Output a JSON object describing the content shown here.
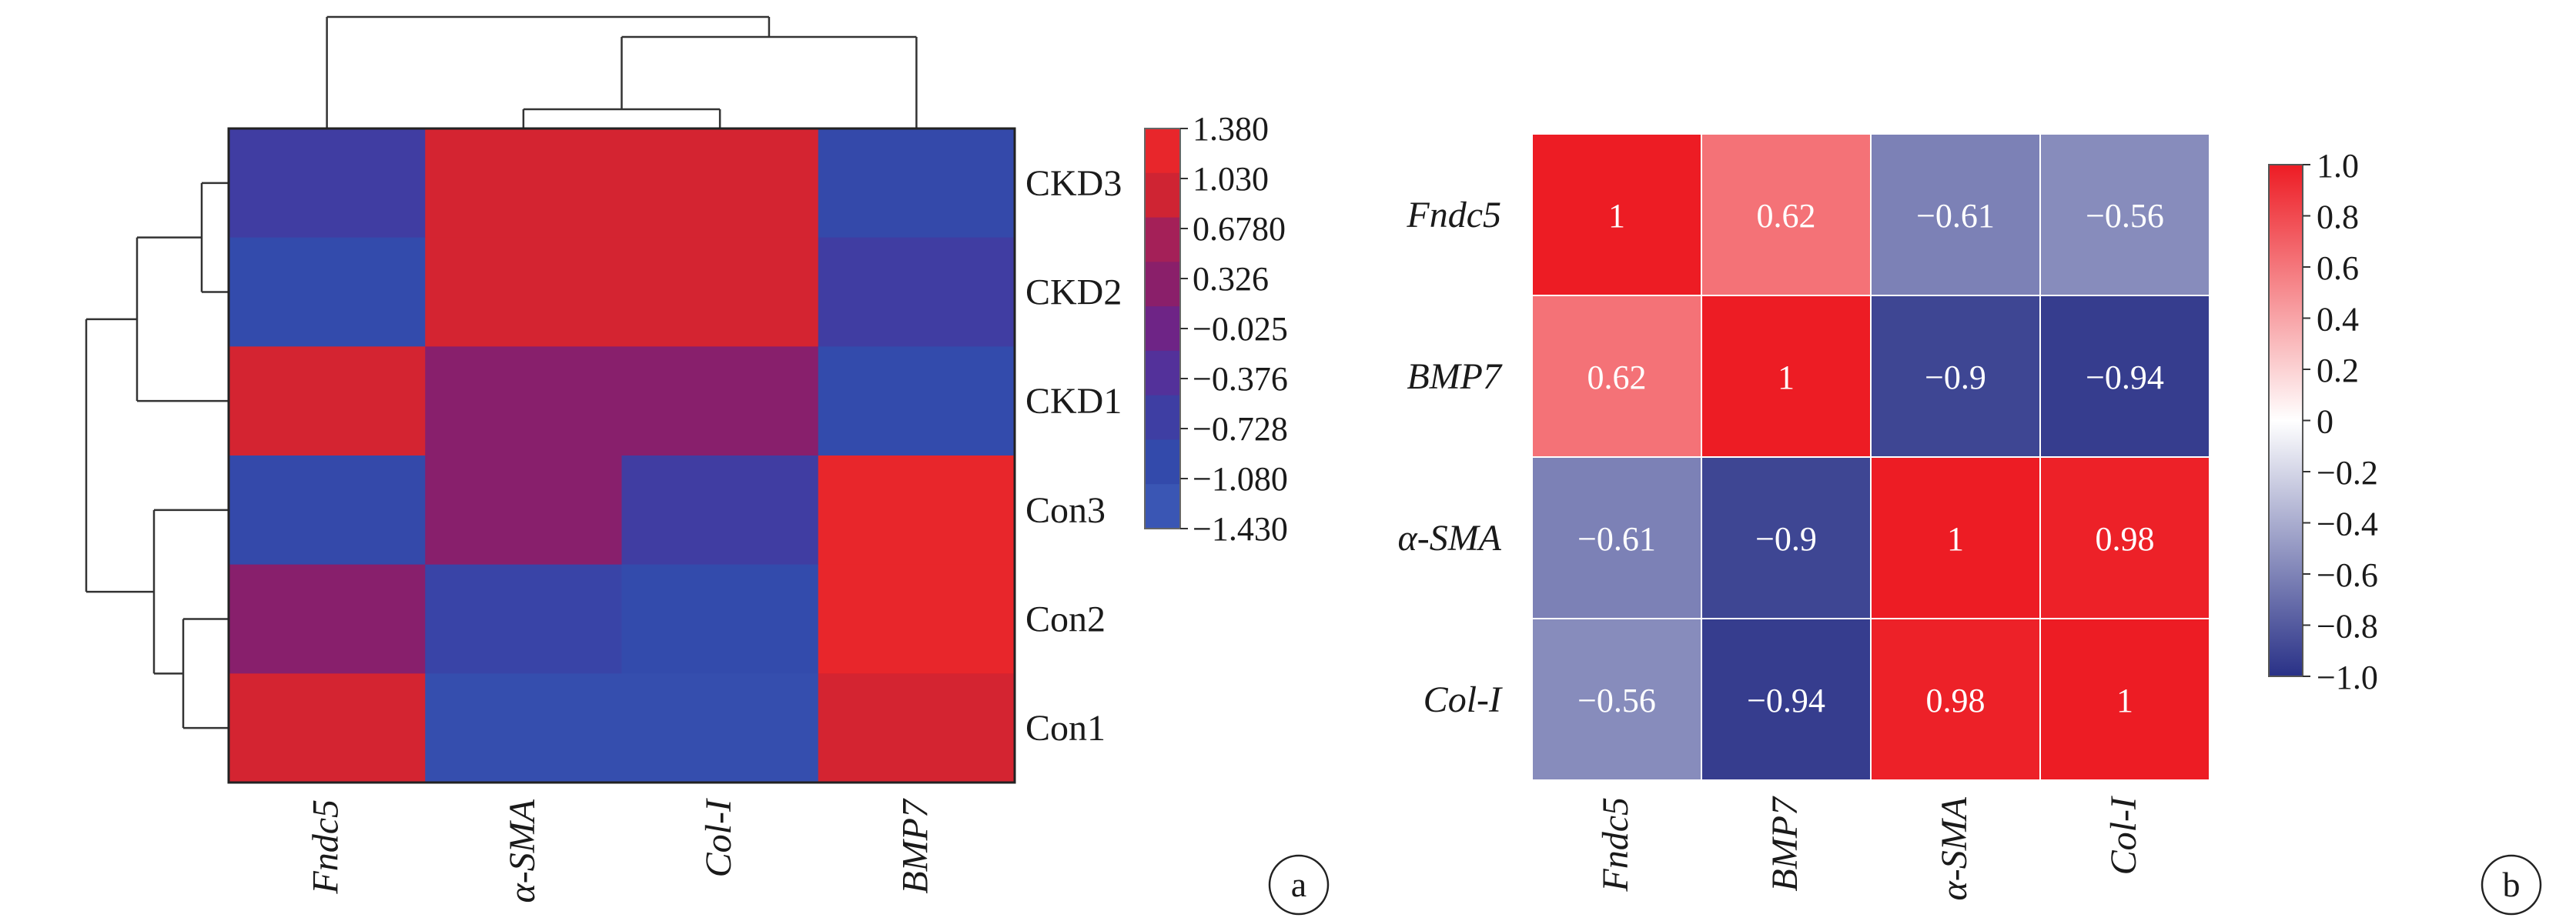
{
  "panels": [
    {
      "id": "a",
      "label": "a"
    },
    {
      "id": "b",
      "label": "b"
    }
  ],
  "chart_data": [
    {
      "type": "heatmap",
      "panel": "a",
      "rows": [
        "CKD3",
        "CKD2",
        "CKD1",
        "Con3",
        "Con2",
        "Con1"
      ],
      "columns": [
        "Fndc5",
        "α-SMA",
        "Col-I",
        "BMP7"
      ],
      "values": [
        [
          -0.7,
          1.1,
          1.1,
          -1.05
        ],
        [
          -1.1,
          1.1,
          1.1,
          -0.7
        ],
        [
          1.1,
          0.3,
          0.3,
          -1.1
        ],
        [
          -1.05,
          0.3,
          -0.7,
          1.38
        ],
        [
          0.3,
          -0.9,
          -1.1,
          1.38
        ],
        [
          1.1,
          -1.2,
          -1.2,
          1.1
        ]
      ],
      "colorbar": {
        "ticks": [
          "1.380",
          "1.030",
          "0.6780",
          "0.326",
          "−0.025",
          "−0.376",
          "−0.728",
          "−1.080",
          "−1.430"
        ],
        "range": [
          -1.43,
          1.38
        ],
        "colors": [
          "#e8262b",
          "#cf2433",
          "#a42058",
          "#8a1f6a",
          "#6e2486",
          "#53319a",
          "#3e3ea3",
          "#334aab",
          "#3a56b4"
        ]
      },
      "dendrogram": {
        "rows": true,
        "columns": true
      }
    },
    {
      "type": "heatmap",
      "panel": "b",
      "rows": [
        "Fndc5",
        "BMP7",
        "α-SMA",
        "Col-I"
      ],
      "columns": [
        "Fndc5",
        "BMP7",
        "α-SMA",
        "Col-I"
      ],
      "values": [
        [
          1,
          0.62,
          -0.61,
          -0.56
        ],
        [
          0.62,
          1,
          -0.9,
          -0.94
        ],
        [
          -0.61,
          -0.9,
          1,
          0.98
        ],
        [
          -0.56,
          -0.94,
          0.98,
          1
        ]
      ],
      "cell_labels": [
        [
          "1",
          "0.62",
          "−0.61",
          "−0.56"
        ],
        [
          "0.62",
          "1",
          "−0.9",
          "−0.94"
        ],
        [
          "−0.61",
          "−0.9",
          "1",
          "0.98"
        ],
        [
          "−0.56",
          "−0.94",
          "0.98",
          "1"
        ]
      ],
      "colorbar": {
        "ticks": [
          "1.0",
          "0.8",
          "0.6",
          "0.4",
          "0.2",
          "0",
          "−0.2",
          "−0.4",
          "−0.6",
          "−0.8",
          "−1.0"
        ],
        "range": [
          -1,
          1
        ],
        "colors": [
          "#293187",
          "#ffffff",
          "#ed1c24"
        ]
      }
    }
  ]
}
